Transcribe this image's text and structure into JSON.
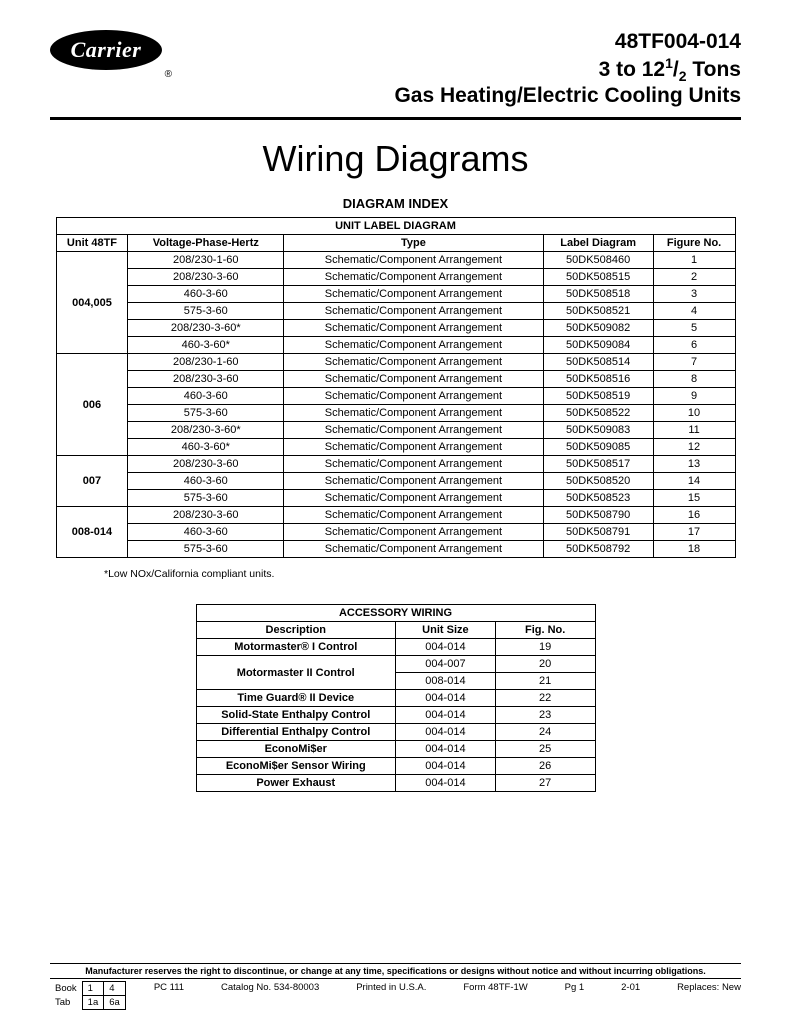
{
  "logo": {
    "text": "Carrier",
    "reg": "®"
  },
  "header": {
    "line1": "48TF004-014",
    "line2_a": "3 to 12",
    "line2_sup": "1",
    "line2_slash": "/",
    "line2_sub": "2",
    "line2_b": " Tons",
    "line3": "Gas Heating/Electric Cooling Units"
  },
  "main_title": "Wiring Diagrams",
  "section1_label": "DIAGRAM INDEX",
  "table1": {
    "caption": "UNIT LABEL DIAGRAM",
    "headers": [
      "Unit 48TF",
      "Voltage-Phase-Hertz",
      "Type",
      "Label Diagram",
      "Figure No."
    ],
    "groups": [
      {
        "unit": "004,005",
        "rows": [
          [
            "208/230-1-60",
            "Schematic/Component Arrangement",
            "50DK508460",
            "1"
          ],
          [
            "208/230-3-60",
            "Schematic/Component Arrangement",
            "50DK508515",
            "2"
          ],
          [
            "460-3-60",
            "Schematic/Component Arrangement",
            "50DK508518",
            "3"
          ],
          [
            "575-3-60",
            "Schematic/Component Arrangement",
            "50DK508521",
            "4"
          ],
          [
            "208/230-3-60*",
            "Schematic/Component Arrangement",
            "50DK509082",
            "5"
          ],
          [
            "460-3-60*",
            "Schematic/Component Arrangement",
            "50DK509084",
            "6"
          ]
        ]
      },
      {
        "unit": "006",
        "rows": [
          [
            "208/230-1-60",
            "Schematic/Component Arrangement",
            "50DK508514",
            "7"
          ],
          [
            "208/230-3-60",
            "Schematic/Component Arrangement",
            "50DK508516",
            "8"
          ],
          [
            "460-3-60",
            "Schematic/Component Arrangement",
            "50DK508519",
            "9"
          ],
          [
            "575-3-60",
            "Schematic/Component Arrangement",
            "50DK508522",
            "10"
          ],
          [
            "208/230-3-60*",
            "Schematic/Component Arrangement",
            "50DK509083",
            "11"
          ],
          [
            "460-3-60*",
            "Schematic/Component Arrangement",
            "50DK509085",
            "12"
          ]
        ]
      },
      {
        "unit": "007",
        "rows": [
          [
            "208/230-3-60",
            "Schematic/Component Arrangement",
            "50DK508517",
            "13"
          ],
          [
            "460-3-60",
            "Schematic/Component Arrangement",
            "50DK508520",
            "14"
          ],
          [
            "575-3-60",
            "Schematic/Component Arrangement",
            "50DK508523",
            "15"
          ]
        ]
      },
      {
        "unit": "008-014",
        "rows": [
          [
            "208/230-3-60",
            "Schematic/Component Arrangement",
            "50DK508790",
            "16"
          ],
          [
            "460-3-60",
            "Schematic/Component Arrangement",
            "50DK508791",
            "17"
          ],
          [
            "575-3-60",
            "Schematic/Component Arrangement",
            "50DK508792",
            "18"
          ]
        ]
      }
    ]
  },
  "footnote": "*Low NOx/California compliant units.",
  "table2": {
    "caption": "ACCESSORY WIRING",
    "headers": [
      "Description",
      "Unit Size",
      "Fig. No."
    ],
    "rows": [
      {
        "desc": "Motormaster® I Control",
        "size": "004-014",
        "fig": "19",
        "rowspan": 1
      },
      {
        "desc": "Motormaster II Control",
        "size": "004-007",
        "fig": "20",
        "rowspan": 2
      },
      {
        "desc": "",
        "size": "008-014",
        "fig": "21",
        "rowspan": 0
      },
      {
        "desc": "Time Guard® II Device",
        "size": "004-014",
        "fig": "22",
        "rowspan": 1
      },
      {
        "desc": "Solid-State Enthalpy Control",
        "size": "004-014",
        "fig": "23",
        "rowspan": 1
      },
      {
        "desc": "Differential Enthalpy Control",
        "size": "004-014",
        "fig": "24",
        "rowspan": 1
      },
      {
        "desc": "EconoMi$er",
        "size": "004-014",
        "fig": "25",
        "rowspan": 1
      },
      {
        "desc": "EconoMi$er Sensor Wiring",
        "size": "004-014",
        "fig": "26",
        "rowspan": 1
      },
      {
        "desc": "Power Exhaust",
        "size": "004-014",
        "fig": "27",
        "rowspan": 1
      }
    ]
  },
  "footer": {
    "disclaimer": "Manufacturer reserves the right to discontinue, or change at any time, specifications or designs without notice and without incurring obligations.",
    "book_label": "Book",
    "book_a": "1",
    "book_b": "4",
    "tab_label": "Tab",
    "tab_a": "1a",
    "tab_b": "6a",
    "pc": "PC 111",
    "catalog": "Catalog No. 534-80003",
    "printed": "Printed in U.S.A.",
    "form": "Form 48TF-1W",
    "pg": "Pg 1",
    "date": "2-01",
    "replaces": "Replaces: New"
  }
}
